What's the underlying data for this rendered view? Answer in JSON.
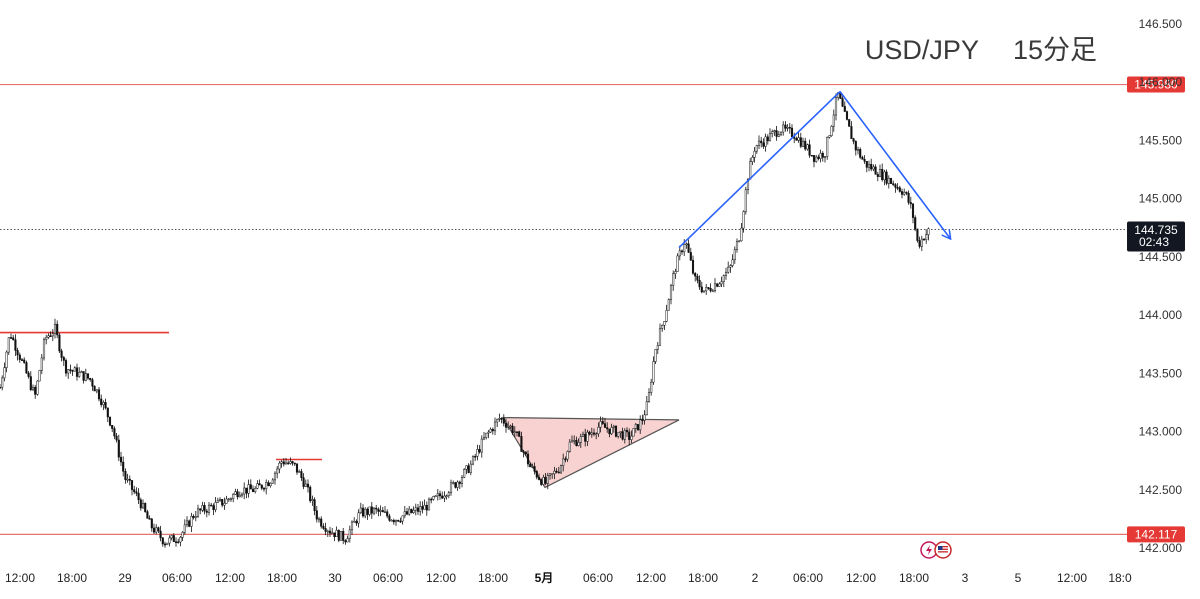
{
  "chart_data": {
    "type": "candlestick",
    "title": "USD/JPY　 15分足",
    "ylim": [
      142.0,
      146.5
    ],
    "y_ticks": [
      "146.500",
      "146.000",
      "145.500",
      "145.000",
      "144.500",
      "144.000",
      "143.500",
      "143.000",
      "142.500",
      "142.000"
    ],
    "y_tick_values": [
      146.5,
      146.0,
      145.5,
      145.0,
      144.5,
      144.0,
      143.5,
      143.0,
      142.5,
      142.0
    ],
    "x_ticks": [
      "12:00",
      "18:00",
      "29",
      "06:00",
      "12:00",
      "18:00",
      "30",
      "06:00",
      "12:00",
      "18:00",
      "5月",
      "06:00",
      "12:00",
      "18:00",
      "2",
      "06:00",
      "12:00",
      "18:00",
      "3",
      "5",
      "12:00",
      "18:0"
    ],
    "bold_x_tick": "5月",
    "current_price": {
      "label": "144.735",
      "countdown": "02:43",
      "value": 144.735
    },
    "horizontal_levels": [
      {
        "label": "145.980",
        "value": 145.98,
        "color": "#e57373"
      },
      {
        "label": "142.117",
        "value": 142.117,
        "color": "#e57373"
      }
    ],
    "resistance_segments": [
      {
        "value": 143.85,
        "color": "#e53935"
      },
      {
        "value": 142.76,
        "color": "#e53935"
      }
    ],
    "pattern": {
      "type": "ascending-triangle",
      "points": [
        [
          143.12
        ],
        [
          142.52
        ],
        [
          143.1
        ]
      ],
      "fill": "#f7c9c9",
      "stroke": "#555555"
    },
    "trendlines": [
      {
        "from": 144.58,
        "to": 145.92,
        "color": "#2962ff"
      },
      {
        "from": 145.92,
        "to": 144.66,
        "color": "#2962ff",
        "arrow": true
      }
    ],
    "path_keypoints": [
      [
        0,
        143.38
      ],
      [
        10,
        143.85
      ],
      [
        22,
        143.6
      ],
      [
        35,
        143.3
      ],
      [
        45,
        143.8
      ],
      [
        55,
        143.88
      ],
      [
        65,
        143.55
      ],
      [
        78,
        143.5
      ],
      [
        90,
        143.45
      ],
      [
        100,
        143.3
      ],
      [
        112,
        143.05
      ],
      [
        125,
        142.6
      ],
      [
        140,
        142.4
      ],
      [
        150,
        142.2
      ],
      [
        165,
        142.05
      ],
      [
        180,
        142.1
      ],
      [
        195,
        142.3
      ],
      [
        210,
        142.35
      ],
      [
        225,
        142.4
      ],
      [
        240,
        142.5
      ],
      [
        255,
        142.5
      ],
      [
        270,
        142.58
      ],
      [
        282,
        142.75
      ],
      [
        295,
        142.7
      ],
      [
        305,
        142.55
      ],
      [
        318,
        142.25
      ],
      [
        330,
        142.15
      ],
      [
        345,
        142.08
      ],
      [
        360,
        142.3
      ],
      [
        375,
        142.32
      ],
      [
        395,
        142.25
      ],
      [
        410,
        142.3
      ],
      [
        425,
        142.35
      ],
      [
        440,
        142.45
      ],
      [
        455,
        142.55
      ],
      [
        470,
        142.7
      ],
      [
        485,
        142.95
      ],
      [
        500,
        143.12
      ],
      [
        515,
        143.0
      ],
      [
        530,
        142.7
      ],
      [
        545,
        142.55
      ],
      [
        560,
        142.7
      ],
      [
        570,
        142.9
      ],
      [
        585,
        142.95
      ],
      [
        600,
        143.05
      ],
      [
        615,
        143.0
      ],
      [
        630,
        142.95
      ],
      [
        642,
        143.1
      ],
      [
        648,
        143.25
      ],
      [
        655,
        143.7
      ],
      [
        665,
        144.0
      ],
      [
        675,
        144.4
      ],
      [
        685,
        144.65
      ],
      [
        695,
        144.3
      ],
      [
        705,
        144.2
      ],
      [
        720,
        144.3
      ],
      [
        730,
        144.4
      ],
      [
        740,
        144.7
      ],
      [
        748,
        145.2
      ],
      [
        755,
        145.45
      ],
      [
        765,
        145.5
      ],
      [
        780,
        145.6
      ],
      [
        795,
        145.55
      ],
      [
        805,
        145.45
      ],
      [
        815,
        145.35
      ],
      [
        825,
        145.4
      ],
      [
        838,
        145.9
      ],
      [
        845,
        145.7
      ],
      [
        855,
        145.45
      ],
      [
        865,
        145.3
      ],
      [
        880,
        145.22
      ],
      [
        895,
        145.12
      ],
      [
        905,
        145.05
      ],
      [
        912,
        144.9
      ],
      [
        918,
        144.6
      ],
      [
        924,
        144.68
      ],
      [
        930,
        144.73
      ]
    ],
    "xlabel": "",
    "ylabel": "",
    "grid": false
  },
  "toolbar_icons": [
    "lightning-badge-icon",
    "us-flag-icon"
  ],
  "colors": {
    "candle": "#111111",
    "level_line": "#e57373",
    "badge_red": "#e53935",
    "trend": "#2962ff",
    "current_badge": "#131722"
  }
}
